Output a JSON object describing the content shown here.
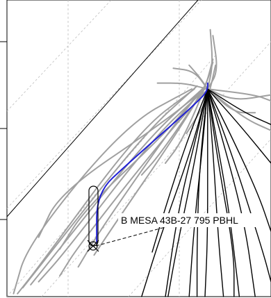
{
  "chart_data": {
    "type": "line",
    "title": "",
    "xlabel": "",
    "ylabel": "",
    "grid": true,
    "legend": "none",
    "annotation": {
      "label": "B MESA 43B-27 795 PBHL"
    },
    "series": [
      {
        "role": "offset",
        "values": [
          [
            0.025,
            0.01
          ],
          [
            0.08,
            0.18
          ],
          [
            0.45,
            0.58
          ],
          [
            0.7,
            0.7
          ]
        ]
      },
      {
        "role": "offset",
        "values": [
          [
            0.04,
            0.01
          ],
          [
            0.12,
            0.1
          ],
          [
            0.5,
            0.56
          ],
          [
            0.71,
            0.7
          ]
        ]
      },
      {
        "role": "offset",
        "values": [
          [
            0.06,
            0.03
          ],
          [
            0.14,
            0.12
          ],
          [
            0.52,
            0.55
          ],
          [
            0.72,
            0.71
          ]
        ]
      },
      {
        "role": "offset",
        "values": [
          [
            0.09,
            0.04
          ],
          [
            0.18,
            0.14
          ],
          [
            0.54,
            0.54
          ],
          [
            0.74,
            0.7
          ]
        ]
      },
      {
        "role": "offset",
        "values": [
          [
            0.12,
            0.05
          ],
          [
            0.22,
            0.15
          ],
          [
            0.55,
            0.53
          ],
          [
            0.74,
            0.69
          ]
        ]
      },
      {
        "role": "offset",
        "values": [
          [
            0.2,
            0.07
          ],
          [
            0.27,
            0.17
          ],
          [
            0.58,
            0.52
          ],
          [
            0.75,
            0.69
          ]
        ]
      },
      {
        "role": "offset",
        "values": [
          [
            0.27,
            0.1
          ],
          [
            0.35,
            0.22
          ],
          [
            0.6,
            0.54
          ],
          [
            0.74,
            0.7
          ]
        ]
      },
      {
        "role": "offset",
        "values": [
          [
            0.33,
            0.14
          ],
          [
            0.42,
            0.26
          ],
          [
            0.62,
            0.52
          ],
          [
            0.74,
            0.69
          ]
        ]
      },
      {
        "role": "offset",
        "values": [
          [
            0.2,
            0.16
          ],
          [
            0.3,
            0.3
          ],
          [
            0.6,
            0.55
          ],
          [
            0.74,
            0.7
          ]
        ]
      },
      {
        "role": "offset",
        "values": [
          [
            0.12,
            0.2
          ],
          [
            0.2,
            0.35
          ],
          [
            0.58,
            0.58
          ],
          [
            0.75,
            0.7
          ]
        ]
      },
      {
        "role": "offset",
        "values": [
          [
            0.51,
            0.41
          ],
          [
            0.58,
            0.48
          ],
          [
            0.75,
            0.7
          ],
          [
            0.78,
            0.79
          ]
        ]
      },
      {
        "role": "offset",
        "values": [
          [
            0.6,
            0.45
          ],
          [
            0.66,
            0.52
          ],
          [
            0.75,
            0.7
          ],
          [
            0.78,
            0.8
          ]
        ]
      },
      {
        "role": "offset",
        "values": [
          [
            0.68,
            0.55
          ],
          [
            0.75,
            0.65
          ],
          [
            0.77,
            0.7
          ],
          [
            0.79,
            0.78
          ]
        ]
      },
      {
        "role": "offset",
        "values": [
          [
            0.76,
            0.7
          ],
          [
            0.86,
            0.66
          ],
          [
            1.0,
            0.68
          ]
        ]
      },
      {
        "role": "offset",
        "values": [
          [
            0.76,
            0.7
          ],
          [
            0.9,
            0.6
          ],
          [
            1.0,
            0.56
          ]
        ]
      },
      {
        "role": "offset",
        "values": [
          [
            0.76,
            0.7
          ],
          [
            0.8,
            0.76
          ],
          [
            0.78,
            0.88
          ]
        ]
      },
      {
        "role": "offset",
        "values": [
          [
            0.76,
            0.7
          ],
          [
            0.73,
            0.74
          ],
          [
            0.69,
            0.78
          ]
        ]
      },
      {
        "role": "offset",
        "values": [
          [
            0.76,
            0.7
          ],
          [
            0.71,
            0.76
          ],
          [
            0.63,
            0.77
          ]
        ]
      },
      {
        "role": "offset",
        "values": [
          [
            0.76,
            0.7
          ],
          [
            0.78,
            0.78
          ],
          [
            0.77,
            0.9
          ]
        ]
      },
      {
        "role": "offset",
        "values": [
          [
            0.76,
            0.7
          ],
          [
            0.67,
            0.72
          ],
          [
            0.57,
            0.72
          ]
        ]
      },
      {
        "role": "offset",
        "values": [
          [
            0.76,
            0.7
          ],
          [
            0.86,
            0.62
          ],
          [
            0.94,
            0.62
          ]
        ]
      },
      {
        "role": "offset",
        "values": [
          [
            0.76,
            0.7
          ],
          [
            0.94,
            0.68
          ],
          [
            1.0,
            0.66
          ]
        ]
      },
      {
        "role": "lateral",
        "values": [
          [
            0.76,
            0.7
          ],
          [
            0.72,
            0.55
          ],
          [
            0.65,
            0.3
          ],
          [
            0.6,
            0.0
          ]
        ]
      },
      {
        "role": "lateral",
        "values": [
          [
            0.76,
            0.7
          ],
          [
            0.74,
            0.5
          ],
          [
            0.71,
            0.25
          ],
          [
            0.69,
            0.0
          ]
        ]
      },
      {
        "role": "lateral",
        "values": [
          [
            0.76,
            0.7
          ],
          [
            0.76,
            0.5
          ],
          [
            0.76,
            0.2
          ],
          [
            0.75,
            0.0
          ]
        ]
      },
      {
        "role": "lateral",
        "values": [
          [
            0.76,
            0.7
          ],
          [
            0.78,
            0.5
          ],
          [
            0.8,
            0.2
          ],
          [
            0.82,
            0.0
          ]
        ]
      },
      {
        "role": "lateral",
        "values": [
          [
            0.76,
            0.7
          ],
          [
            0.79,
            0.55
          ],
          [
            0.84,
            0.3
          ],
          [
            0.88,
            0.0
          ]
        ]
      },
      {
        "role": "lateral",
        "values": [
          [
            0.76,
            0.7
          ],
          [
            0.82,
            0.52
          ],
          [
            0.9,
            0.25
          ],
          [
            0.94,
            0.0
          ]
        ]
      },
      {
        "role": "lateral",
        "values": [
          [
            0.76,
            0.7
          ],
          [
            0.84,
            0.56
          ],
          [
            0.95,
            0.35
          ],
          [
            1.0,
            0.22
          ]
        ]
      },
      {
        "role": "lateral",
        "values": [
          [
            0.76,
            0.7
          ],
          [
            0.88,
            0.58
          ],
          [
            1.0,
            0.45
          ]
        ]
      },
      {
        "role": "lateral",
        "values": [
          [
            0.76,
            0.7
          ],
          [
            0.9,
            0.62
          ],
          [
            1.0,
            0.58
          ]
        ]
      },
      {
        "role": "lateral",
        "values": [
          [
            0.76,
            0.7
          ],
          [
            0.7,
            0.5
          ],
          [
            0.58,
            0.2
          ],
          [
            0.51,
            0.0
          ]
        ]
      },
      {
        "role": "lateral",
        "values": [
          [
            0.76,
            0.7
          ],
          [
            0.71,
            0.45
          ],
          [
            0.64,
            0.15
          ],
          [
            0.61,
            0.0
          ]
        ]
      },
      {
        "role": "lateral",
        "values": [
          [
            0.76,
            0.7
          ],
          [
            0.73,
            0.45
          ],
          [
            0.72,
            0.2
          ],
          [
            0.72,
            0.0
          ]
        ]
      },
      {
        "role": "lateral",
        "values": [
          [
            0.76,
            0.7
          ],
          [
            0.8,
            0.45
          ],
          [
            0.86,
            0.15
          ],
          [
            0.86,
            0.0
          ]
        ]
      },
      {
        "role": "lateral",
        "values": [
          [
            0.76,
            0.7
          ],
          [
            0.86,
            0.46
          ],
          [
            0.97,
            0.15
          ],
          [
            1.0,
            0.05
          ]
        ]
      },
      {
        "role": "lateral",
        "values": [
          [
            0.76,
            0.7
          ],
          [
            0.68,
            0.52
          ],
          [
            0.6,
            0.3
          ],
          [
            0.55,
            0.15
          ]
        ]
      },
      {
        "role": "selected",
        "values": [
          [
            0.34,
            0.18
          ],
          [
            0.34,
            0.35
          ],
          [
            0.46,
            0.45
          ],
          [
            0.74,
            0.67
          ],
          [
            0.76,
            0.7
          ],
          [
            0.76,
            0.72
          ]
        ]
      }
    ]
  }
}
